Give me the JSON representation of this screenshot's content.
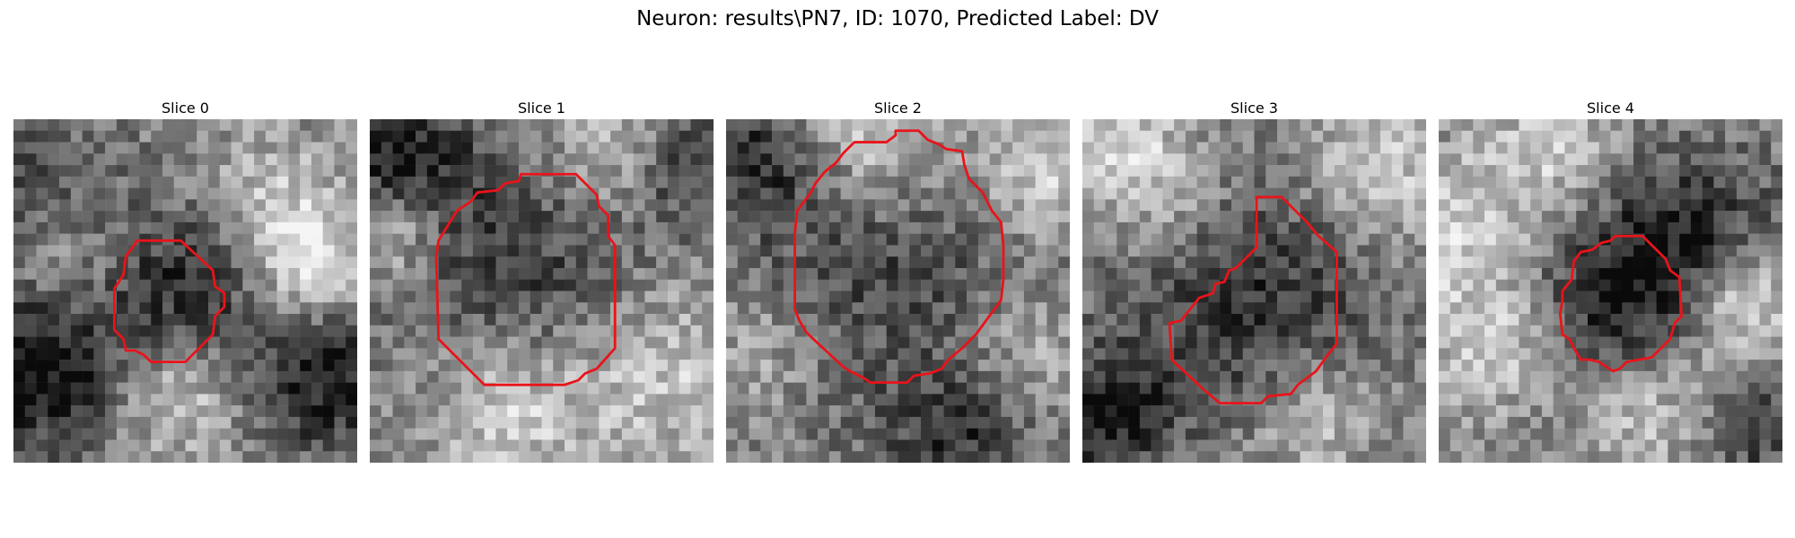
{
  "figure": {
    "title": "Neuron: results\\PN7, ID: 1070, Predicted Label: DV"
  },
  "panels": [
    {
      "title": "Slice 0"
    },
    {
      "title": "Slice 1"
    },
    {
      "title": "Slice 2"
    },
    {
      "title": "Slice 3"
    },
    {
      "title": "Slice 4"
    }
  ],
  "colors": {
    "contour": "#e8141a"
  }
}
